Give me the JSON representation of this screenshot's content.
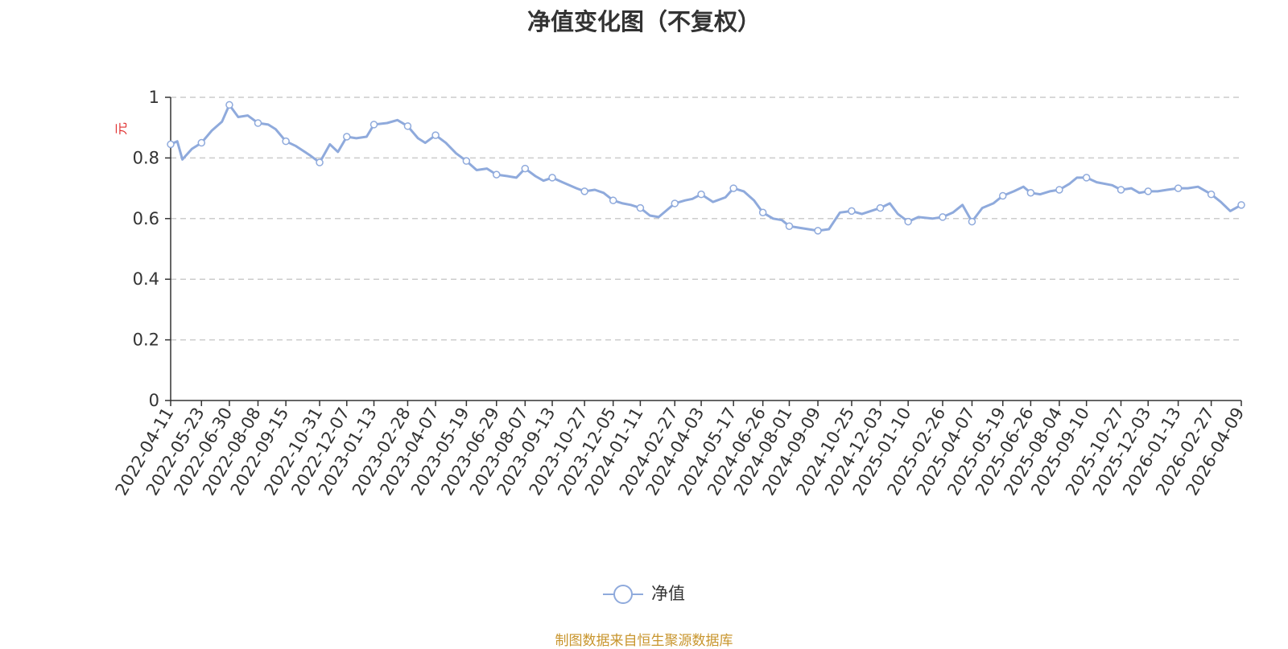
{
  "chart_data": {
    "type": "line",
    "title": "净值变化图（不复权）",
    "ylabel": "元",
    "ylim": [
      0,
      1
    ],
    "yticks": [
      "0",
      "0.2",
      "0.4",
      "0.6",
      "0.8",
      "1"
    ],
    "ytick_values": [
      0,
      0.2,
      0.4,
      0.6,
      0.8,
      1
    ],
    "grid": true,
    "legend_position": "bottom-center",
    "line_color": "#8faadc",
    "x_tick_labels": [
      "2022-04-11",
      "2022-05-23",
      "2022-06-30",
      "2022-08-08",
      "2022-09-15",
      "2022-10-31",
      "2022-12-07",
      "2023-01-13",
      "2023-02-28",
      "2023-04-07",
      "2023-05-19",
      "2023-06-29",
      "2023-08-07",
      "2023-09-13",
      "2023-10-27",
      "2023-12-05",
      "2024-01-11",
      "2024-02-27",
      "2024-04-03",
      "2024-05-17",
      "2024-06-26",
      "2024-08-01",
      "2024-09-09",
      "2024-10-25",
      "2024-12-03",
      "2025-01-10",
      "2025-02-26",
      "2025-04-07",
      "2025-05-19",
      "2025-06-26",
      "2025-08-04",
      "2025-09-10",
      "2025-10-27",
      "2025-12-03",
      "2026-01-13",
      "2026-02-27",
      "2026-04-09"
    ],
    "series": [
      {
        "name": "净值",
        "x": [
          "2022-04-11",
          "2022-04-20",
          "2022-04-27",
          "2022-05-10",
          "2022-05-23",
          "2022-06-06",
          "2022-06-20",
          "2022-06-30",
          "2022-07-12",
          "2022-07-25",
          "2022-08-08",
          "2022-08-22",
          "2022-09-01",
          "2022-09-15",
          "2022-09-28",
          "2022-10-17",
          "2022-10-31",
          "2022-11-14",
          "2022-11-25",
          "2022-12-07",
          "2022-12-20",
          "2023-01-03",
          "2023-01-13",
          "2023-01-31",
          "2023-02-14",
          "2023-02-28",
          "2023-03-14",
          "2023-03-24",
          "2023-04-07",
          "2023-04-21",
          "2023-05-05",
          "2023-05-19",
          "2023-06-02",
          "2023-06-16",
          "2023-06-29",
          "2023-07-14",
          "2023-07-26",
          "2023-08-07",
          "2023-08-21",
          "2023-09-01",
          "2023-09-13",
          "2023-09-27",
          "2023-10-16",
          "2023-10-27",
          "2023-11-10",
          "2023-11-22",
          "2023-12-05",
          "2023-12-18",
          "2023-12-29",
          "2024-01-11",
          "2024-01-24",
          "2024-02-05",
          "2024-02-27",
          "2024-03-12",
          "2024-03-22",
          "2024-04-03",
          "2024-04-19",
          "2024-05-06",
          "2024-05-17",
          "2024-05-31",
          "2024-06-14",
          "2024-06-26",
          "2024-07-10",
          "2024-07-22",
          "2024-08-01",
          "2024-08-14",
          "2024-08-27",
          "2024-09-09",
          "2024-09-24",
          "2024-10-09",
          "2024-10-25",
          "2024-11-08",
          "2024-11-20",
          "2024-12-03",
          "2024-12-16",
          "2024-12-27",
          "2025-01-10",
          "2025-01-24",
          "2025-02-12",
          "2025-02-26",
          "2025-03-12",
          "2025-03-25",
          "2025-04-07",
          "2025-04-21",
          "2025-05-06",
          "2025-05-19",
          "2025-06-03",
          "2025-06-16",
          "2025-06-26",
          "2025-07-09",
          "2025-07-22",
          "2025-08-04",
          "2025-08-18",
          "2025-08-28",
          "2025-09-10",
          "2025-09-24",
          "2025-10-15",
          "2025-10-27",
          "2025-11-10",
          "2025-11-21",
          "2025-12-03",
          "2025-12-16",
          "2025-12-29",
          "2026-01-13",
          "2026-01-26",
          "2026-02-09",
          "2026-02-27",
          "2026-03-12",
          "2026-03-25",
          "2026-04-09"
        ],
        "values": [
          0.845,
          0.855,
          0.795,
          0.83,
          0.85,
          0.89,
          0.92,
          0.975,
          0.935,
          0.94,
          0.915,
          0.91,
          0.895,
          0.855,
          0.84,
          0.81,
          0.785,
          0.845,
          0.82,
          0.87,
          0.865,
          0.87,
          0.91,
          0.915,
          0.925,
          0.905,
          0.865,
          0.85,
          0.875,
          0.85,
          0.815,
          0.79,
          0.76,
          0.765,
          0.745,
          0.74,
          0.735,
          0.765,
          0.74,
          0.725,
          0.735,
          0.72,
          0.7,
          0.69,
          0.695,
          0.685,
          0.66,
          0.65,
          0.645,
          0.635,
          0.61,
          0.605,
          0.65,
          0.66,
          0.665,
          0.68,
          0.655,
          0.67,
          0.7,
          0.69,
          0.66,
          0.62,
          0.6,
          0.595,
          0.575,
          0.57,
          0.565,
          0.56,
          0.565,
          0.62,
          0.625,
          0.615,
          0.625,
          0.635,
          0.65,
          0.615,
          0.59,
          0.605,
          0.6,
          0.605,
          0.62,
          0.645,
          0.59,
          0.635,
          0.65,
          0.675,
          0.69,
          0.705,
          0.685,
          0.68,
          0.69,
          0.695,
          0.715,
          0.735,
          0.735,
          0.72,
          0.71,
          0.695,
          0.7,
          0.685,
          0.69,
          0.69,
          0.695,
          0.7,
          0.7,
          0.705,
          0.68,
          0.655,
          0.625,
          0.645
        ]
      }
    ],
    "marker_dates": [
      "2022-04-11",
      "2022-05-23",
      "2022-06-30",
      "2022-08-08",
      "2022-09-15",
      "2022-10-31",
      "2022-12-07",
      "2023-01-13",
      "2023-02-28",
      "2023-04-07",
      "2023-05-19",
      "2023-06-29",
      "2023-08-07",
      "2023-09-13",
      "2023-10-27",
      "2023-12-05",
      "2024-01-11",
      "2024-02-27",
      "2024-04-03",
      "2024-05-17",
      "2024-06-26",
      "2024-08-01",
      "2024-09-09",
      "2024-10-25",
      "2024-12-03",
      "2025-01-10",
      "2025-02-26",
      "2025-04-07",
      "2025-05-19",
      "2025-06-26",
      "2025-08-04",
      "2025-09-10",
      "2025-10-27",
      "2025-12-03",
      "2026-01-13",
      "2026-02-27",
      "2026-04-09"
    ]
  },
  "legend": {
    "series_label": "净值"
  },
  "footer": {
    "source": "制图数据来自恒生聚源数据库"
  }
}
